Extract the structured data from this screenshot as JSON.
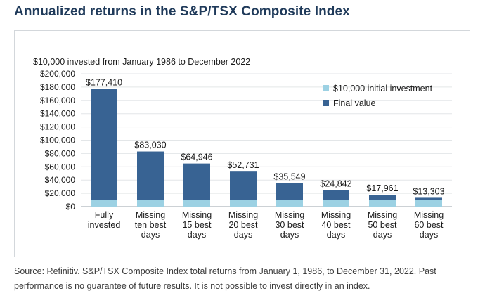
{
  "page": {
    "title": "Annualized returns in the S&P/TSX Composite Index",
    "source": "Source: Refinitiv. S&P/TSX Composite Index total returns from January 1, 1986, to December 31, 2022. Past performance is no guarantee of future results. It is not possible to invest directly in an index."
  },
  "colors": {
    "final_value": "#386393",
    "initial_investment": "#9cd1e3",
    "grid": "#e3e6e8",
    "text": "#1a1a1a"
  },
  "chart_data": {
    "type": "bar",
    "subtitle": "$10,000 invested from January 1986 to December 2022",
    "categories": [
      [
        "Fully",
        "invested"
      ],
      [
        "Missing",
        "ten best",
        "days"
      ],
      [
        "Missing",
        "15 best",
        "days"
      ],
      [
        "Missing",
        "20 best",
        "days"
      ],
      [
        "Missing",
        "30 best",
        "days"
      ],
      [
        "Missing",
        "40 best",
        "days"
      ],
      [
        "Missing",
        "50 best",
        "days"
      ],
      [
        "Missing",
        "60 best",
        "days"
      ]
    ],
    "series": [
      {
        "name": "$10,000 initial investment",
        "values": [
          10000,
          10000,
          10000,
          10000,
          10000,
          10000,
          10000,
          10000
        ]
      },
      {
        "name": "Final value",
        "values": [
          177410,
          83030,
          64946,
          52731,
          35549,
          24842,
          17961,
          13303
        ]
      }
    ],
    "data_labels": [
      "$177,410",
      "$83,030",
      "$64,946",
      "$52,731",
      "$35,549",
      "$24,842",
      "$17,961",
      "$13,303"
    ],
    "ylim": [
      0,
      200000
    ],
    "yticks": [
      0,
      20000,
      40000,
      60000,
      80000,
      100000,
      120000,
      140000,
      160000,
      180000,
      200000
    ],
    "ytick_labels": [
      "$0",
      "$20,000",
      "$40,000",
      "$60,000",
      "$80,000",
      "$100,000",
      "$120,000",
      "$140,000",
      "$160,000",
      "$180,000",
      "$200,000"
    ],
    "legend_position": "top-right",
    "grid": true,
    "xlabel": "",
    "ylabel": ""
  }
}
